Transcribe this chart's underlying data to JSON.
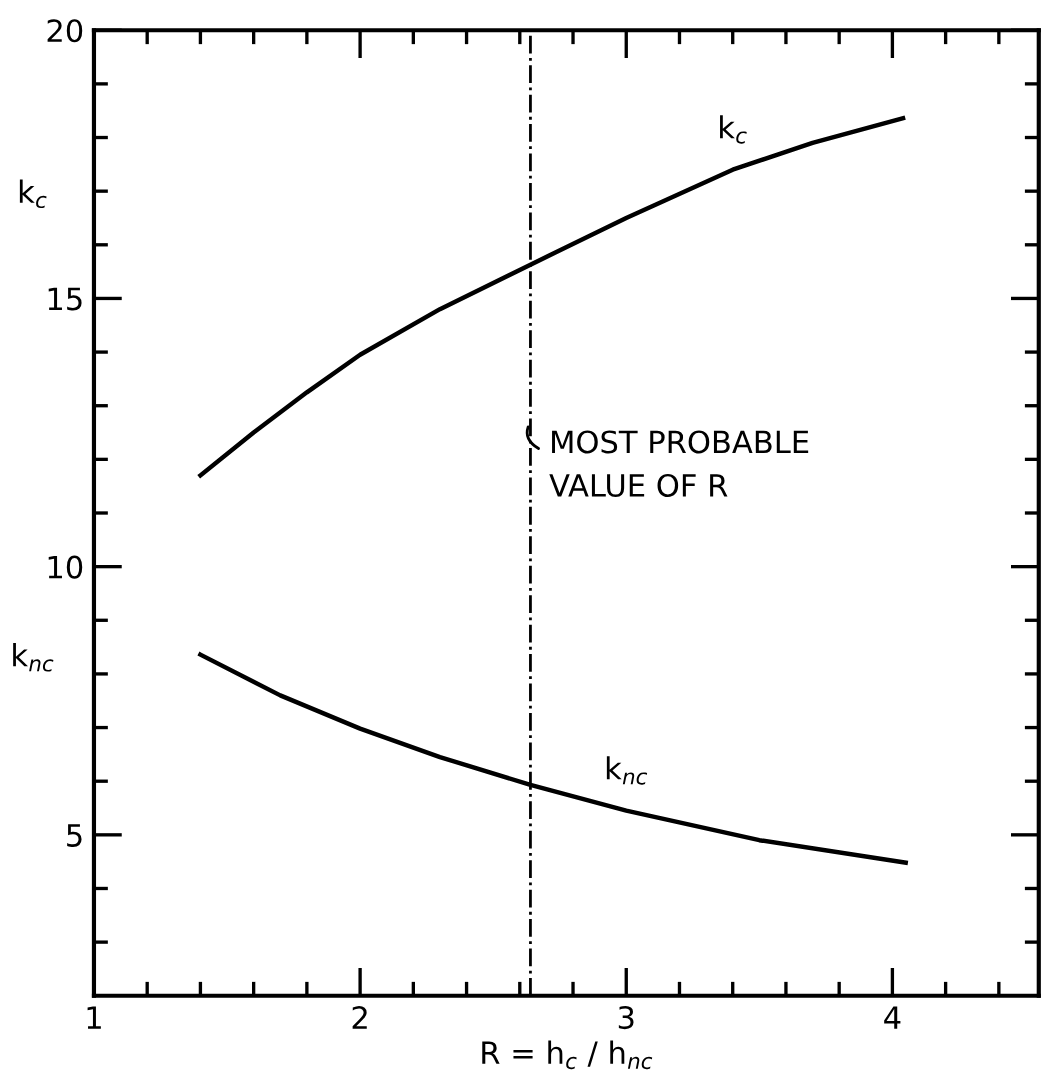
{
  "chart_data": {
    "type": "line",
    "xlabel": "R = h$_{c}$ / h$_{nc}$",
    "xlim": [
      1,
      4.55
    ],
    "ylim": [
      2,
      20
    ],
    "xticks": [
      1,
      {
        "value": 1.2,
        "label": null
      },
      {
        "value": 1.4,
        "label": null
      },
      {
        "value": 1.6,
        "label": null
      },
      {
        "value": 1.8,
        "label": null
      },
      2,
      {
        "value": 2.2,
        "label": null
      },
      {
        "value": 2.4,
        "label": null
      },
      {
        "value": 2.6,
        "label": null
      },
      {
        "value": 2.8,
        "label": null
      },
      3,
      {
        "value": 3.2,
        "label": null
      },
      {
        "value": 3.4,
        "label": null
      },
      {
        "value": 3.6,
        "label": null
      },
      {
        "value": 3.8,
        "label": null
      },
      4,
      {
        "value": 4.2,
        "label": null
      },
      {
        "value": 4.4,
        "label": null
      }
    ],
    "yticks": [
      {
        "value": 3,
        "label": null
      },
      {
        "value": 4,
        "label": null
      },
      5,
      {
        "value": 6,
        "label": null
      },
      {
        "value": 7,
        "label": null
      },
      {
        "value": 8,
        "label": null
      },
      {
        "value": 9,
        "label": null
      },
      10,
      {
        "value": 11,
        "label": null
      },
      {
        "value": 12,
        "label": null
      },
      {
        "value": 13,
        "label": null
      },
      {
        "value": 14,
        "label": null
      },
      15,
      {
        "value": 16,
        "label": null
      },
      {
        "value": 17,
        "label": null
      },
      {
        "value": 18,
        "label": null
      },
      {
        "value": 19,
        "label": null
      },
      20
    ],
    "grid": false,
    "marker": "none",
    "line_style": "solid",
    "series": [
      {
        "name": "k$_{c}$",
        "color": "#000000",
        "x": [
          1.4,
          1.6,
          1.8,
          2.0,
          2.3,
          2.64,
          3.0,
          3.4,
          3.7,
          4.04
        ],
        "values": [
          11.7,
          12.5,
          13.25,
          13.95,
          14.8,
          15.63,
          16.5,
          17.4,
          17.9,
          18.36
        ]
      },
      {
        "name": "k$_{nc}$",
        "color": "#000000",
        "x": [
          1.4,
          1.7,
          2.0,
          2.3,
          2.64,
          3.0,
          3.5,
          4.05
        ],
        "values": [
          8.36,
          7.6,
          6.98,
          6.45,
          5.93,
          5.45,
          4.9,
          4.48
        ]
      }
    ],
    "ref_lines": [
      {
        "axis": "x",
        "value": 2.64,
        "color": "#000000",
        "line_style": "dashdot"
      }
    ],
    "annotations": [
      {
        "text": "MOST PROBABLE\nVALUE OF R",
        "x": 2.64,
        "y": 12.7
      },
      "k$_{c}$",
      "k$_{nc}$"
    ]
  }
}
